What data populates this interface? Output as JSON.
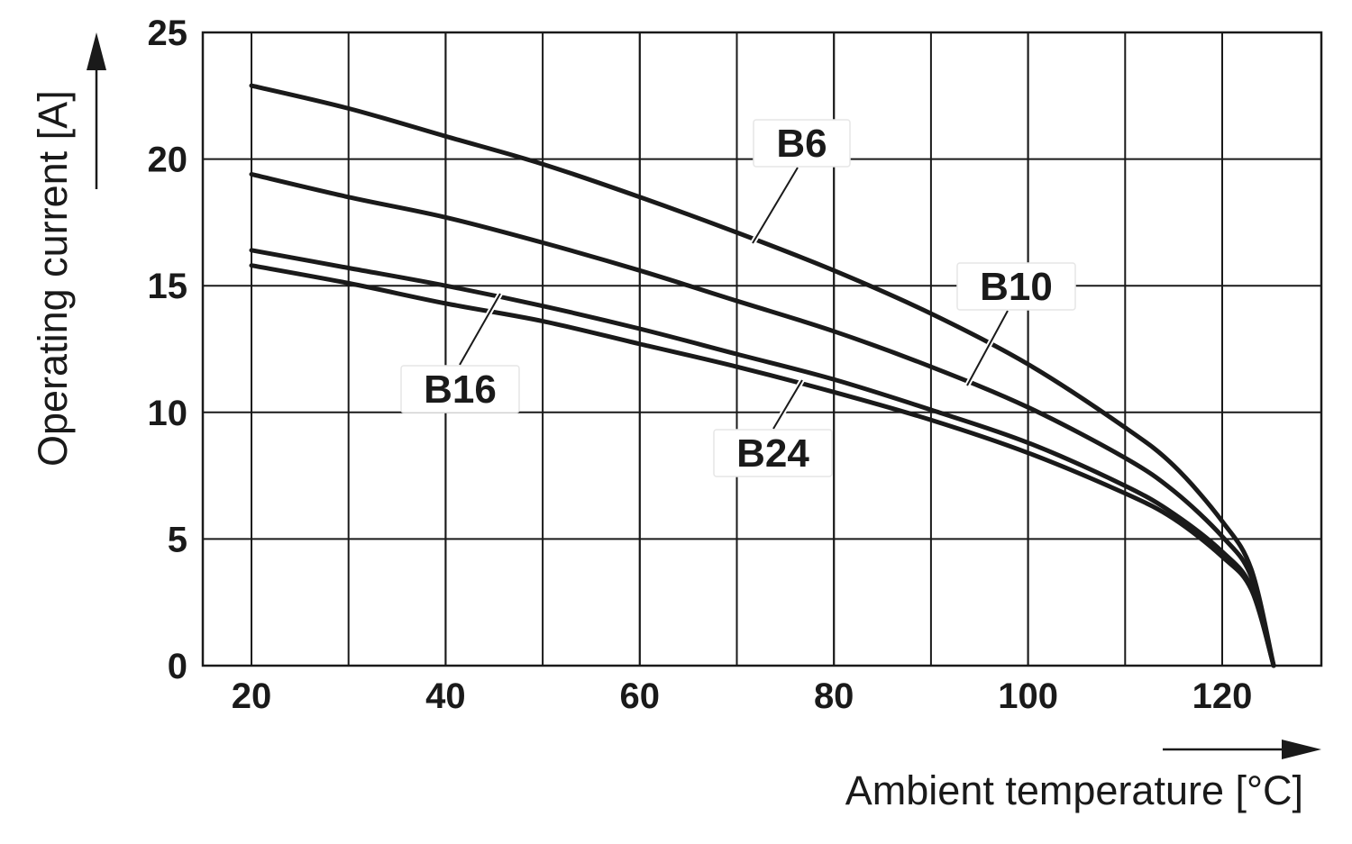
{
  "chart_data": {
    "type": "line",
    "title": "",
    "xlabel": "Ambient temperature [°C]",
    "ylabel": "Operating current [A]",
    "xlim": [
      15,
      130
    ],
    "ylim": [
      0,
      25
    ],
    "xticks": [
      "20",
      "40",
      "60",
      "80",
      "100",
      "120"
    ],
    "yticks": [
      "0",
      "5",
      "10",
      "15",
      "20",
      "25"
    ],
    "grid": true,
    "series": [
      {
        "name": "B6",
        "x": [
          20,
          30,
          40,
          50,
          60,
          70,
          80,
          90,
          100,
          110,
          115,
          120,
          123,
          125.3
        ],
        "y": [
          22.9,
          22.0,
          20.9,
          19.8,
          18.5,
          17.1,
          15.6,
          13.9,
          11.9,
          9.4,
          7.9,
          5.7,
          3.8,
          0
        ]
      },
      {
        "name": "B10",
        "x": [
          20,
          30,
          40,
          50,
          60,
          70,
          80,
          90,
          100,
          110,
          115,
          120,
          123,
          125.3
        ],
        "y": [
          19.4,
          18.5,
          17.7,
          16.7,
          15.6,
          14.4,
          13.2,
          11.8,
          10.2,
          8.2,
          6.9,
          5.1,
          3.5,
          0
        ]
      },
      {
        "name": "B16",
        "x": [
          20,
          30,
          40,
          50,
          60,
          70,
          80,
          90,
          100,
          110,
          115,
          120,
          123,
          125.3
        ],
        "y": [
          16.4,
          15.7,
          15.0,
          14.2,
          13.3,
          12.3,
          11.3,
          10.1,
          8.8,
          7.1,
          6.0,
          4.5,
          3.1,
          0
        ]
      },
      {
        "name": "B24",
        "x": [
          20,
          30,
          40,
          50,
          60,
          70,
          80,
          90,
          100,
          110,
          115,
          120,
          123,
          125.3
        ],
        "y": [
          15.8,
          15.1,
          14.3,
          13.6,
          12.7,
          11.8,
          10.8,
          9.7,
          8.4,
          6.8,
          5.8,
          4.3,
          3.0,
          0
        ]
      }
    ],
    "annotations": [
      {
        "text": "B6",
        "series": "B6"
      },
      {
        "text": "B10",
        "series": "B10"
      },
      {
        "text": "B16",
        "series": "B16"
      },
      {
        "text": "B24",
        "series": "B24"
      }
    ]
  }
}
